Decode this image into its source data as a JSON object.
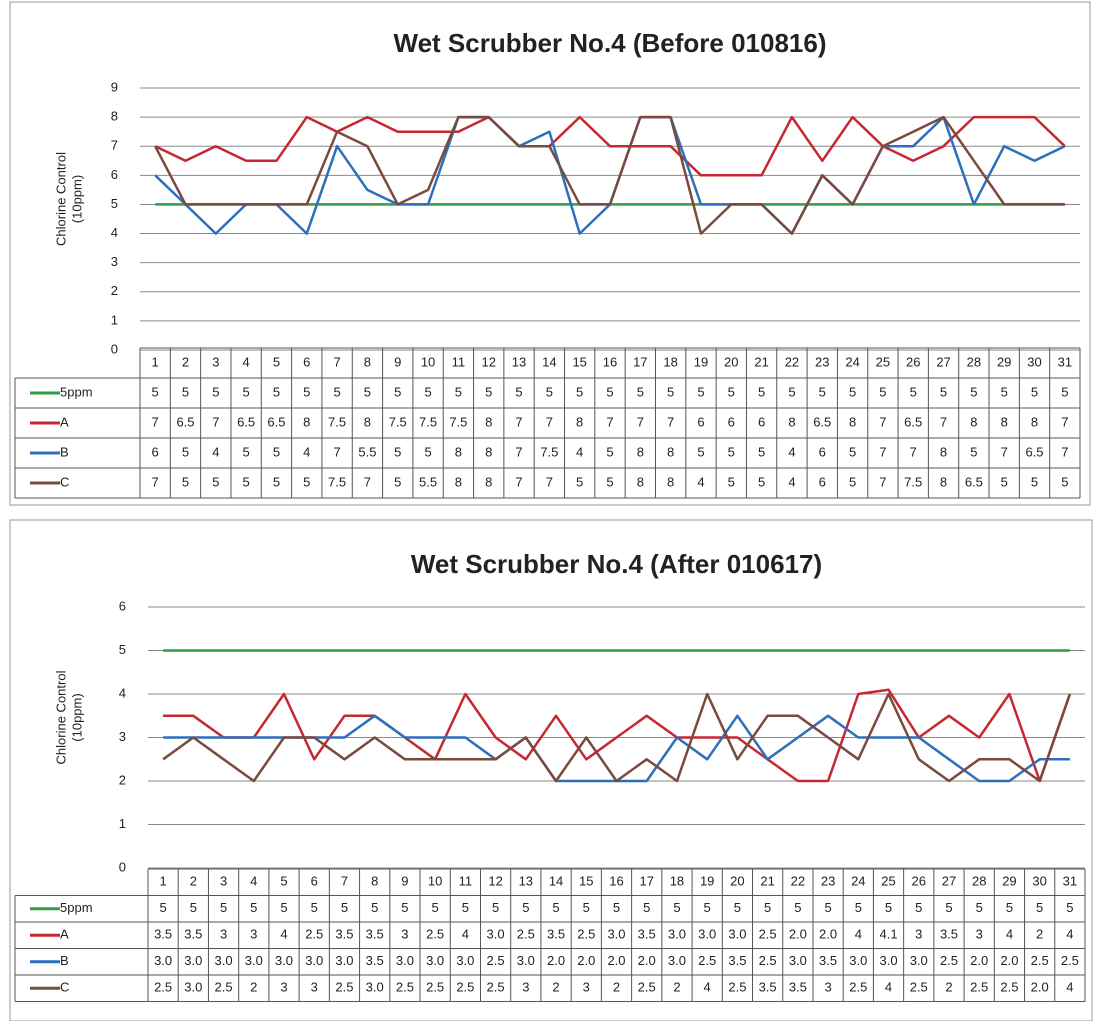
{
  "chart_data": [
    {
      "type": "line",
      "title": "Wet Scrubber No.4 (Before 010816)",
      "y_label": [
        "Chlorine Control",
        "(10ppm)"
      ],
      "categories": [
        1,
        2,
        3,
        4,
        5,
        6,
        7,
        8,
        9,
        10,
        11,
        12,
        13,
        14,
        15,
        16,
        17,
        18,
        19,
        20,
        21,
        22,
        23,
        24,
        25,
        26,
        27,
        28,
        29,
        30,
        31
      ],
      "ylim": [
        0,
        9
      ],
      "yticks": [
        0,
        1,
        2,
        3,
        4,
        5,
        6,
        7,
        8,
        9
      ],
      "grid": true,
      "series": [
        {
          "name": "5ppm",
          "color": "#2f9e44",
          "values": [
            5,
            5,
            5,
            5,
            5,
            5,
            5,
            5,
            5,
            5,
            5,
            5,
            5,
            5,
            5,
            5,
            5,
            5,
            5,
            5,
            5,
            5,
            5,
            5,
            5,
            5,
            5,
            5,
            5,
            5,
            5
          ]
        },
        {
          "name": "A",
          "color": "#c62832",
          "values": [
            7,
            6.5,
            7,
            6.5,
            6.5,
            8,
            7.5,
            8,
            7.5,
            7.5,
            7.5,
            8,
            7,
            7,
            8,
            7,
            7,
            7,
            6,
            6,
            6,
            8,
            6.5,
            8,
            7,
            6.5,
            7,
            8,
            8,
            8,
            7
          ]
        },
        {
          "name": "B",
          "color": "#2c6fbb",
          "values": [
            6,
            5,
            4,
            5,
            5,
            4,
            7,
            5.5,
            5,
            5,
            8,
            8,
            7,
            7.5,
            4,
            5,
            8,
            8,
            5,
            5,
            5,
            4,
            6,
            5,
            7,
            7,
            8,
            5,
            7,
            6.5,
            7
          ]
        },
        {
          "name": "C",
          "color": "#7a4a3c",
          "values": [
            7,
            5,
            5,
            5,
            5,
            5,
            7.5,
            7,
            5,
            5.5,
            8,
            8,
            7,
            7,
            5,
            5,
            8,
            8,
            4,
            5,
            5,
            4,
            6,
            5,
            7,
            7.5,
            8,
            6.5,
            5,
            5,
            5
          ]
        }
      ]
    },
    {
      "type": "line",
      "title": "Wet Scrubber No.4 (After 010617)",
      "y_label": [
        "Chlorine Control",
        "(10ppm)"
      ],
      "categories": [
        1,
        2,
        3,
        4,
        5,
        6,
        7,
        8,
        9,
        10,
        11,
        12,
        13,
        14,
        15,
        16,
        17,
        18,
        19,
        20,
        21,
        22,
        23,
        24,
        25,
        26,
        27,
        28,
        29,
        30,
        31
      ],
      "ylim": [
        0,
        6
      ],
      "yticks": [
        0,
        1,
        2,
        3,
        4,
        5,
        6
      ],
      "grid": true,
      "series": [
        {
          "name": "5ppm",
          "color": "#2f9e44",
          "values": [
            5,
            5,
            5,
            5,
            5,
            5,
            5,
            5,
            5,
            5,
            5,
            5,
            5,
            5,
            5,
            5,
            5,
            5,
            5,
            5,
            5,
            5,
            5,
            5,
            5,
            5,
            5,
            5,
            5,
            5,
            5
          ]
        },
        {
          "name": "A",
          "color": "#c62832",
          "values": [
            3.5,
            3.5,
            3,
            3,
            4,
            2.5,
            3.5,
            3.5,
            3,
            2.5,
            4,
            3,
            2.5,
            3.5,
            2.5,
            3,
            3.5,
            3,
            3,
            3,
            2.5,
            2,
            2,
            4,
            4.1,
            3,
            3.5,
            3,
            4,
            2,
            4
          ],
          "value_labels": [
            "3.5",
            "3.5",
            "3",
            "3",
            "4",
            "2.5",
            "3.5",
            "3.5",
            "3",
            "2.5",
            "4",
            "3.0",
            "2.5",
            "3.5",
            "2.5",
            "3.0",
            "3.5",
            "3.0",
            "3.0",
            "3.0",
            "2.5",
            "2.0",
            "2.0",
            "4",
            "4.1",
            "3",
            "3.5",
            "3",
            "4",
            "2",
            "4"
          ]
        },
        {
          "name": "B",
          "color": "#2c6fbb",
          "values": [
            3,
            3,
            3,
            3,
            3,
            3,
            3,
            3.5,
            3,
            3,
            3,
            2.5,
            3,
            2,
            2,
            2,
            2,
            3,
            2.5,
            3.5,
            2.5,
            3,
            3.5,
            3,
            3,
            3,
            2.5,
            2,
            2,
            2.5,
            2.5
          ],
          "value_labels": [
            "3.0",
            "3.0",
            "3.0",
            "3.0",
            "3.0",
            "3.0",
            "3.0",
            "3.5",
            "3.0",
            "3.0",
            "3.0",
            "2.5",
            "3.0",
            "2.0",
            "2.0",
            "2.0",
            "2.0",
            "3.0",
            "2.5",
            "3.5",
            "2.5",
            "3.0",
            "3.5",
            "3.0",
            "3.0",
            "3.0",
            "2.5",
            "2.0",
            "2.0",
            "2.5",
            "2.5"
          ]
        },
        {
          "name": "C",
          "color": "#7a4a3c",
          "values": [
            2.5,
            3,
            2.5,
            2,
            3,
            3,
            2.5,
            3,
            2.5,
            2.5,
            2.5,
            2.5,
            3,
            2,
            3,
            2,
            2.5,
            2,
            4,
            2.5,
            3.5,
            3.5,
            3,
            2.5,
            4,
            2.5,
            2,
            2.5,
            2.5,
            2,
            4
          ],
          "value_labels": [
            "2.5",
            "3.0",
            "2.5",
            "2",
            "3",
            "3",
            "2.5",
            "3.0",
            "2.5",
            "2.5",
            "2.5",
            "2.5",
            "3",
            "2",
            "3",
            "2",
            "2.5",
            "2",
            "4",
            "2.5",
            "3.5",
            "3.5",
            "3",
            "2.5",
            "4",
            "2.5",
            "2",
            "2.5",
            "2.5",
            "2.0",
            "4"
          ]
        }
      ]
    }
  ]
}
